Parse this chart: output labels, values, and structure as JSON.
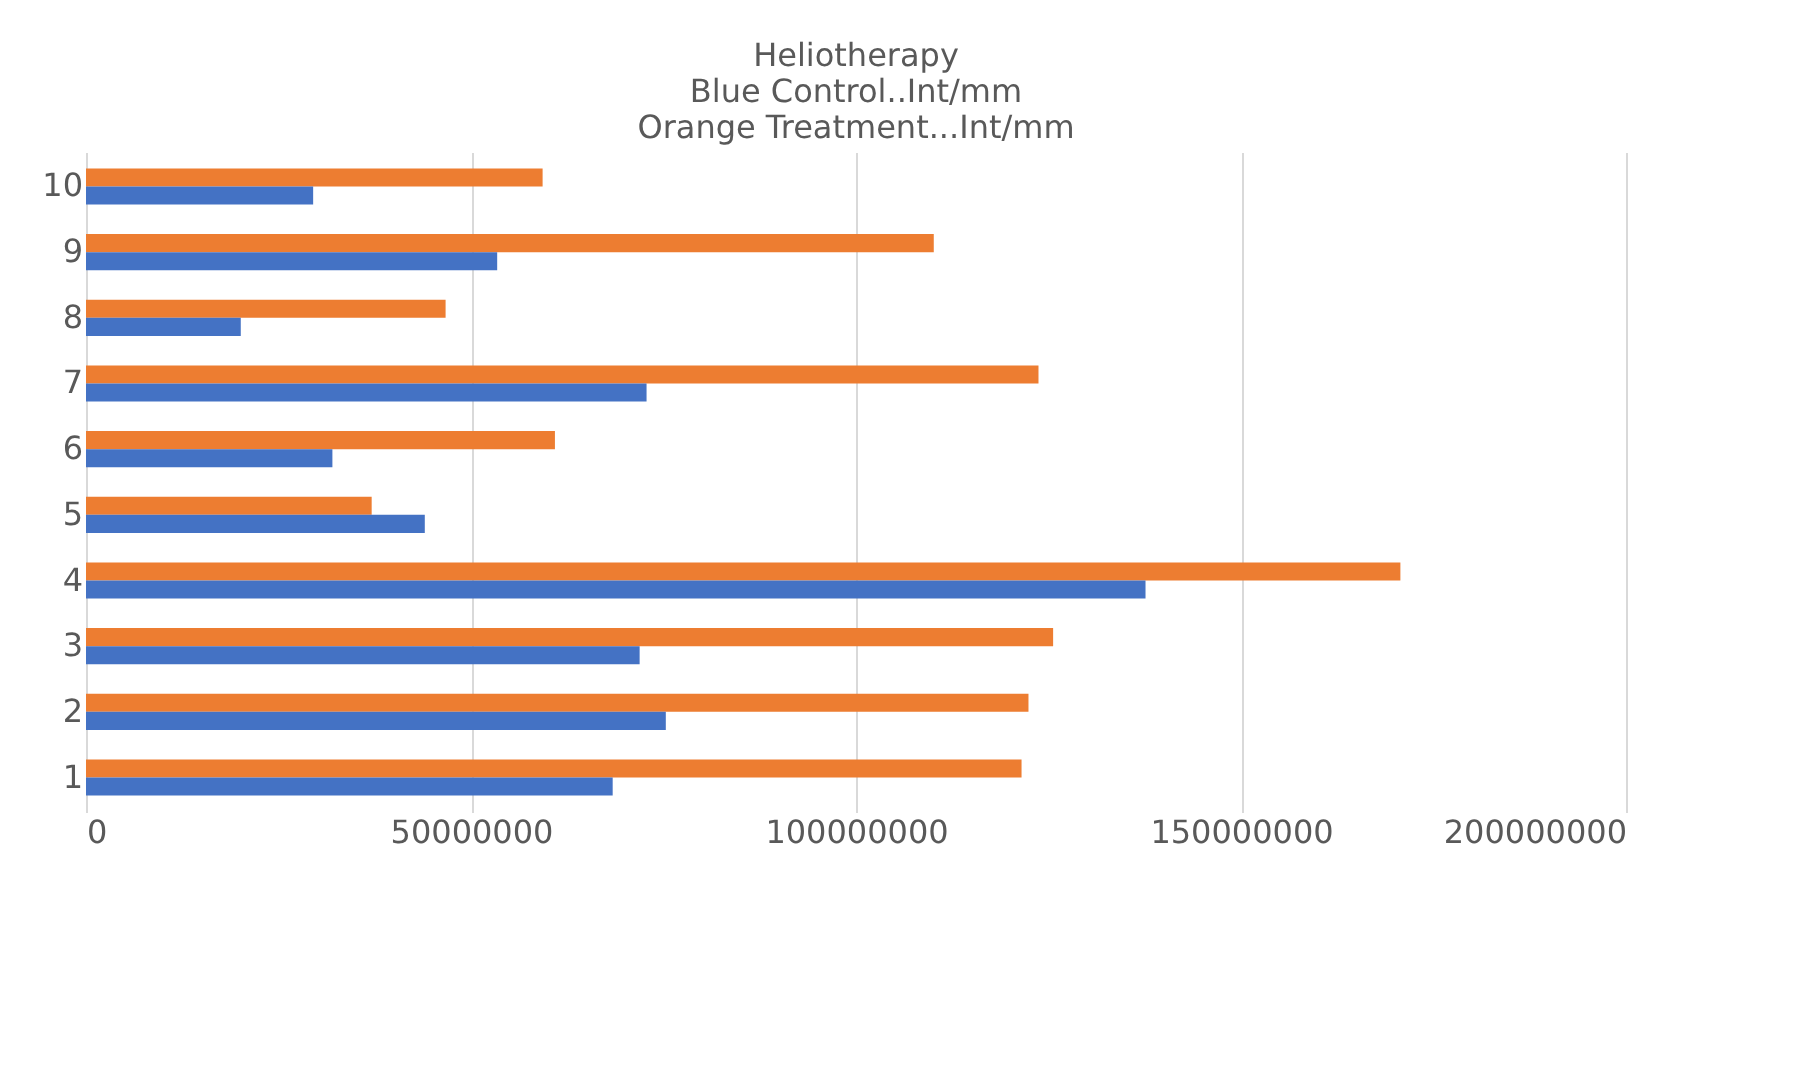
{
  "chart_data": {
    "type": "bar",
    "orientation": "horizontal",
    "title": [
      "Heliotherapy",
      "Blue Control..Int/mm",
      "Orange Treatment...Int/mm"
    ],
    "categories": [
      "10",
      "9",
      "8",
      "7",
      "6",
      "5",
      "4",
      "3",
      "2",
      "1"
    ],
    "series": [
      {
        "color": "#ed7d31",
        "values": [
          59300000,
          110100000,
          46700000,
          123700000,
          60900000,
          37100000,
          170700000,
          125600000,
          122400000,
          121500000
        ]
      },
      {
        "color": "#4472c4",
        "values": [
          29500000,
          53400000,
          20100000,
          72800000,
          32000000,
          44000000,
          137600000,
          71900000,
          75300000,
          68400000
        ]
      }
    ],
    "xlim": [
      0,
      200000000
    ],
    "xticks": [
      0,
      50000000,
      100000000,
      150000000,
      200000000
    ],
    "grid": "x"
  }
}
